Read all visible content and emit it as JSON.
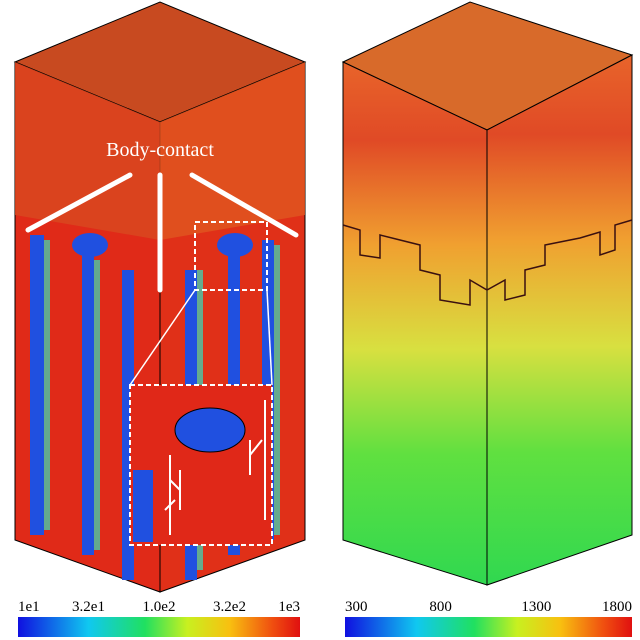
{
  "left_panel": {
    "annotation": "Body-contact",
    "colorbar": {
      "labels": [
        "1e1",
        "3.2e1",
        "1.0e2",
        "3.2e2",
        "1e3"
      ]
    }
  },
  "right_panel": {
    "colorbar": {
      "labels": [
        "300",
        "800",
        "1300",
        "1800"
      ]
    }
  }
}
